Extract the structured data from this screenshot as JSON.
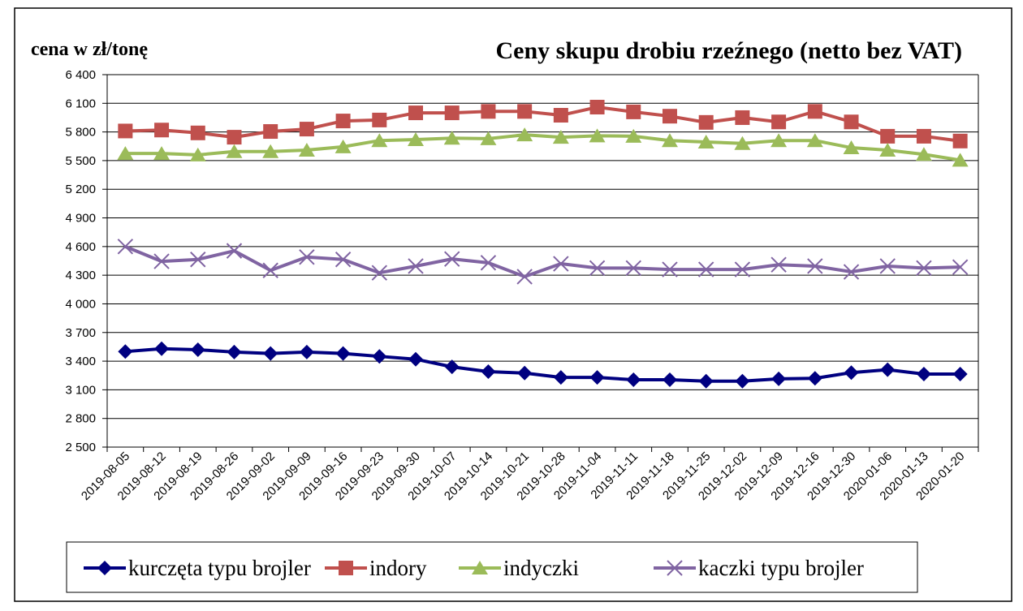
{
  "chart_data": {
    "type": "line",
    "title": "Ceny skupu drobiu rzeźnego (netto bez VAT)",
    "y_label": "cena w zł/tonę",
    "categories": [
      "2019-08-05",
      "2019-08-12",
      "2019-08-19",
      "2019-08-26",
      "2019-09-02",
      "2019-09-09",
      "2019-09-16",
      "2019-09-23",
      "2019-09-30",
      "2019-10-07",
      "2019-10-14",
      "2019-10-21",
      "2019-10-28",
      "2019-11-04",
      "2019-11-11",
      "2019-11-18",
      "2019-11-25",
      "2019-12-02",
      "2019-12-09",
      "2019-12-16",
      "2019-12-30",
      "2020-01-06",
      "2020-01-13",
      "2020-01-20"
    ],
    "series": [
      {
        "name": "kurczęta typu brojler",
        "color": "#000080",
        "marker": "diamond",
        "values": [
          3500,
          3530,
          3520,
          3495,
          3480,
          3495,
          3480,
          3450,
          3420,
          3340,
          3290,
          3275,
          3230,
          3230,
          3205,
          3205,
          3190,
          3190,
          3215,
          3220,
          3280,
          3310,
          3265,
          3265
        ]
      },
      {
        "name": "indory",
        "color": "#c0504d",
        "marker": "square",
        "values": [
          5810,
          5820,
          5790,
          5745,
          5805,
          5830,
          5915,
          5925,
          6000,
          6000,
          6015,
          6015,
          5975,
          6060,
          6010,
          5965,
          5900,
          5950,
          5905,
          6015,
          5905,
          5755,
          5755,
          5705
        ]
      },
      {
        "name": "indyczki",
        "color": "#9bbb59",
        "marker": "triangle",
        "values": [
          5575,
          5575,
          5560,
          5595,
          5595,
          5610,
          5645,
          5710,
          5720,
          5735,
          5730,
          5770,
          5745,
          5760,
          5755,
          5710,
          5695,
          5680,
          5710,
          5710,
          5635,
          5610,
          5565,
          5505
        ]
      },
      {
        "name": "kaczki typu brojler",
        "color": "#8064a2",
        "marker": "x",
        "values": [
          4600,
          4445,
          4465,
          4555,
          4350,
          4490,
          4465,
          4325,
          4395,
          4470,
          4430,
          4285,
          4420,
          4375,
          4375,
          4360,
          4360,
          4360,
          4410,
          4395,
          4335,
          4395,
          4375,
          4385
        ]
      }
    ],
    "ylim": [
      2500,
      6400
    ],
    "yticks": [
      {
        "value": 2500,
        "label": "2 500"
      },
      {
        "value": 2800,
        "label": "2 800"
      },
      {
        "value": 3100,
        "label": "3 100"
      },
      {
        "value": 3400,
        "label": "3 400"
      },
      {
        "value": 3700,
        "label": "3 700"
      },
      {
        "value": 4000,
        "label": "4 000"
      },
      {
        "value": 4300,
        "label": "4 300"
      },
      {
        "value": 4600,
        "label": "4 600"
      },
      {
        "value": 4900,
        "label": "4 900"
      },
      {
        "value": 5200,
        "label": "5 200"
      },
      {
        "value": 5500,
        "label": "5 500"
      },
      {
        "value": 5800,
        "label": "5 800"
      },
      {
        "value": 6100,
        "label": "6 100"
      },
      {
        "value": 6400,
        "label": "6 400"
      }
    ],
    "grid": true,
    "legend": "bottom"
  }
}
